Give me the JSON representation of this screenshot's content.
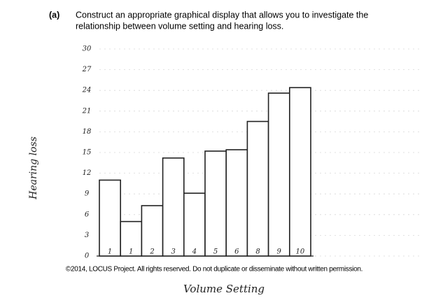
{
  "question": {
    "label": "(a)",
    "text_line1": "Construct an appropriate graphical display that allows you to investigate the",
    "text_line2": "relationship between volume setting and hearing loss."
  },
  "chart_data": {
    "type": "bar",
    "x_label": "Volume Setting",
    "y_label": "Hearing loss",
    "categories": [
      "1",
      "1",
      "2",
      "3",
      "4",
      "5",
      "6",
      "8",
      "9",
      "10"
    ],
    "values": [
      11,
      5,
      7.3,
      14.2,
      9.1,
      15.2,
      15.4,
      19.5,
      23.6,
      24.4
    ],
    "color": "#ffffff",
    "ylim": [
      0,
      30
    ],
    "yticks": [
      0,
      3,
      6,
      9,
      12,
      15,
      18,
      21,
      24,
      27,
      30
    ],
    "grid": true
  },
  "footer": "©2014, LOCUS Project. All rights reserved. Do not duplicate or disseminate without written permission."
}
